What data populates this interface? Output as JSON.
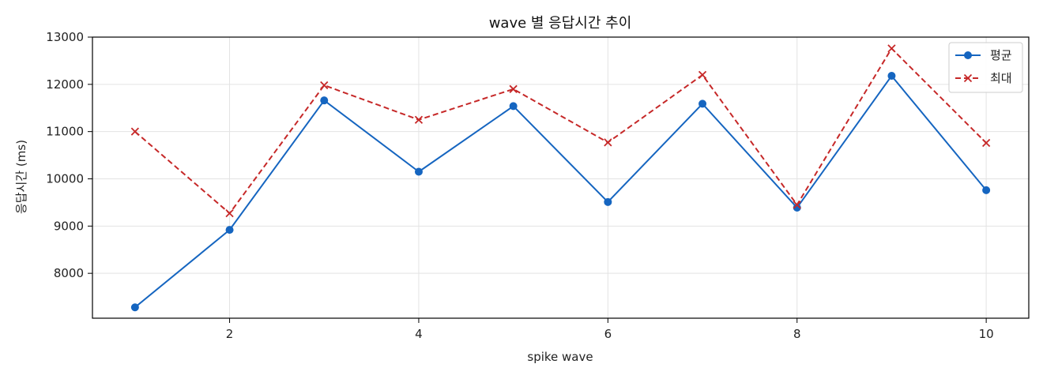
{
  "chart_data": {
    "type": "line",
    "title": "wave 별 응답시간 추이",
    "xlabel": "spike wave",
    "ylabel": "응답시간 (ms)",
    "x": [
      1,
      2,
      3,
      4,
      5,
      6,
      7,
      8,
      9,
      10
    ],
    "xlim": [
      0.55,
      10.45
    ],
    "ylim": [
      7050,
      13000
    ],
    "xticks": [
      2,
      4,
      6,
      8,
      10
    ],
    "yticks": [
      8000,
      9000,
      10000,
      11000,
      12000,
      13000
    ],
    "grid": true,
    "legend_position": "top-right",
    "series": [
      {
        "name": "평균",
        "color": "#1565c0",
        "line_style": "solid",
        "marker": "circle",
        "values": [
          7280,
          8920,
          11660,
          10150,
          11540,
          9510,
          11590,
          9390,
          12180,
          9760
        ]
      },
      {
        "name": "최대",
        "color": "#c62828",
        "line_style": "dashed",
        "marker": "x",
        "values": [
          11000,
          9270,
          11980,
          11250,
          11900,
          10770,
          12200,
          9450,
          12760,
          10760
        ]
      }
    ]
  }
}
